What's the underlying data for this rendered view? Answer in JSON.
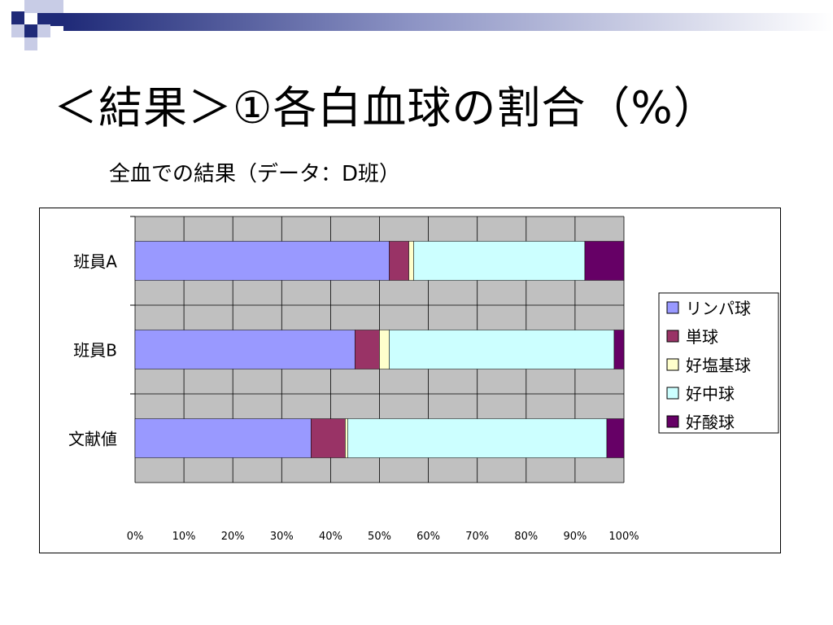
{
  "slide": {
    "title": "＜結果＞①各白血球の割合（%）",
    "subtitle": "全血での結果（データ：D班）"
  },
  "colors": {
    "plot_background": "#C0C0C0",
    "grid": "#000000",
    "bar_edge": "#000000",
    "decoration_navy": "#1F2A78",
    "decoration_light": "#C8CCE6"
  },
  "chart_data": {
    "type": "bar",
    "orientation": "horizontal",
    "stacked": "percent",
    "categories": [
      "班員A",
      "班員B",
      "文献値"
    ],
    "series": [
      {
        "name": "リンパ球",
        "color": "#9999FF",
        "values": [
          52,
          45,
          36
        ]
      },
      {
        "name": "単球",
        "color": "#993366",
        "values": [
          4,
          5,
          7
        ]
      },
      {
        "name": "好塩基球",
        "color": "#FFFFCC",
        "values": [
          1,
          2,
          0.5
        ]
      },
      {
        "name": "好中球",
        "color": "#CCFFFF",
        "values": [
          35,
          46,
          53
        ]
      },
      {
        "name": "好酸球",
        "color": "#660066",
        "values": [
          8,
          2,
          3.5
        ]
      }
    ],
    "x_ticks": [
      "0%",
      "10%",
      "20%",
      "30%",
      "40%",
      "50%",
      "60%",
      "70%",
      "80%",
      "90%",
      "100%"
    ],
    "xlim": [
      0,
      100
    ],
    "grid": true,
    "legend_position": "right"
  }
}
